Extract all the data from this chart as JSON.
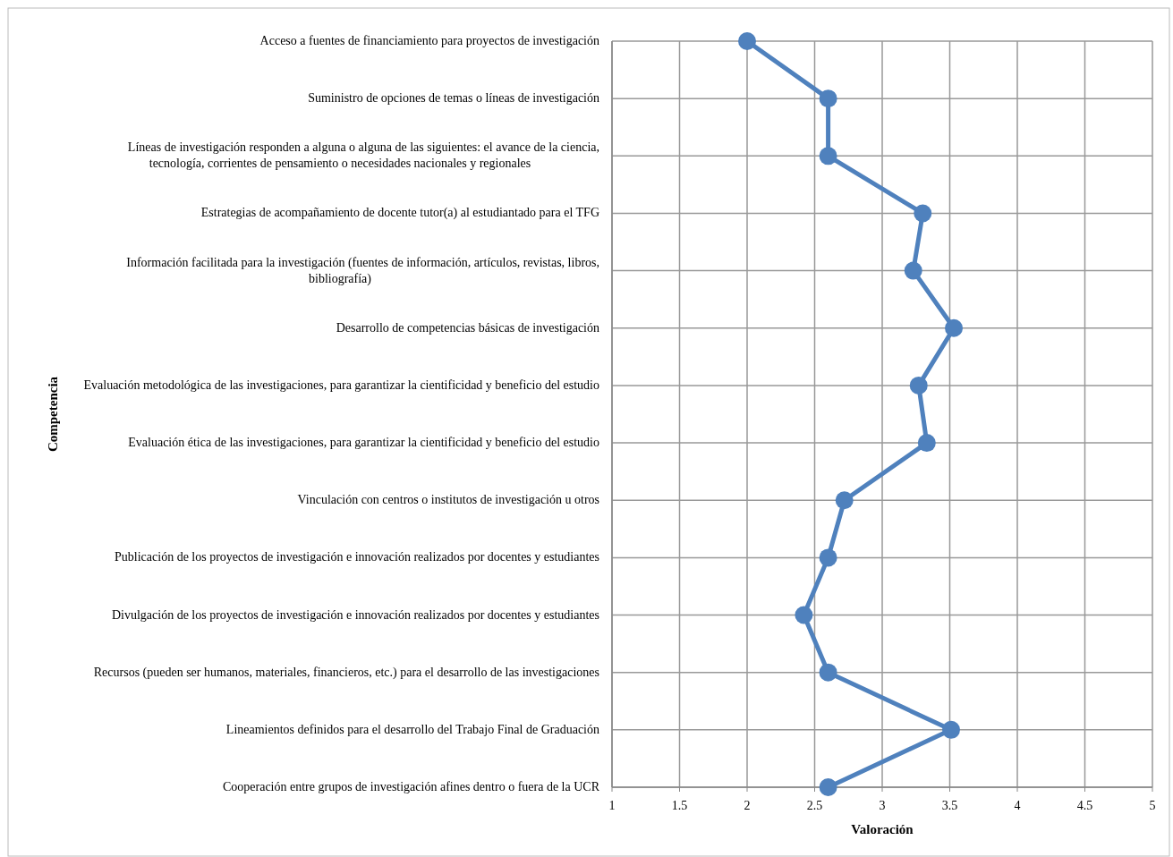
{
  "chart_data": {
    "type": "line",
    "orientation": "horizontal",
    "xlabel": "Valoración",
    "ylabel": "Competencia",
    "categories": [
      "Acceso a fuentes de financiamiento para proyectos de investigación",
      "Suministro de opciones de temas o líneas de investigación",
      "Líneas de investigación responden a alguna o alguna de las siguientes: el avance de la ciencia, tecnología, corrientes de pensamiento o necesidades nacionales y regionales",
      "Estrategias de acompañamiento de docente tutor(a) al estudiantado para el TFG",
      "Información facilitada para la investigación (fuentes de información, artículos, revistas, libros, bibliografía)",
      "Desarrollo de competencias básicas de investigación",
      "Evaluación metodológica de las investigaciones, para garantizar la cientificidad y beneficio del estudio",
      "Evaluación ética de las investigaciones, para garantizar la cientificidad y beneficio del estudio",
      "Vinculación con centros o institutos de investigación u otros",
      "Publicación de los proyectos de investigación e innovación realizados por docentes y estudiantes",
      "Divulgación de los proyectos de investigación e innovación realizados por docentes y estudiantes",
      "Recursos (pueden ser humanos, materiales, financieros, etc.) para el desarrollo de las investigaciones",
      "Lineamientos definidos para el desarrollo del Trabajo Final de Graduación",
      "Cooperación entre grupos de investigación afines dentro o fuera de la UCR"
    ],
    "series": [
      {
        "color": "#4f81bd",
        "values": [
          2.0,
          2.6,
          2.6,
          3.3,
          3.23,
          3.53,
          3.27,
          3.33,
          2.72,
          2.6,
          2.42,
          2.6,
          3.51,
          2.6
        ]
      }
    ],
    "xlim": [
      1,
      5
    ],
    "xticks": [
      1,
      1.5,
      2,
      2.5,
      3,
      3.5,
      4,
      4.5,
      5
    ],
    "grid": true,
    "marker": "circle",
    "line_style": "solid"
  }
}
